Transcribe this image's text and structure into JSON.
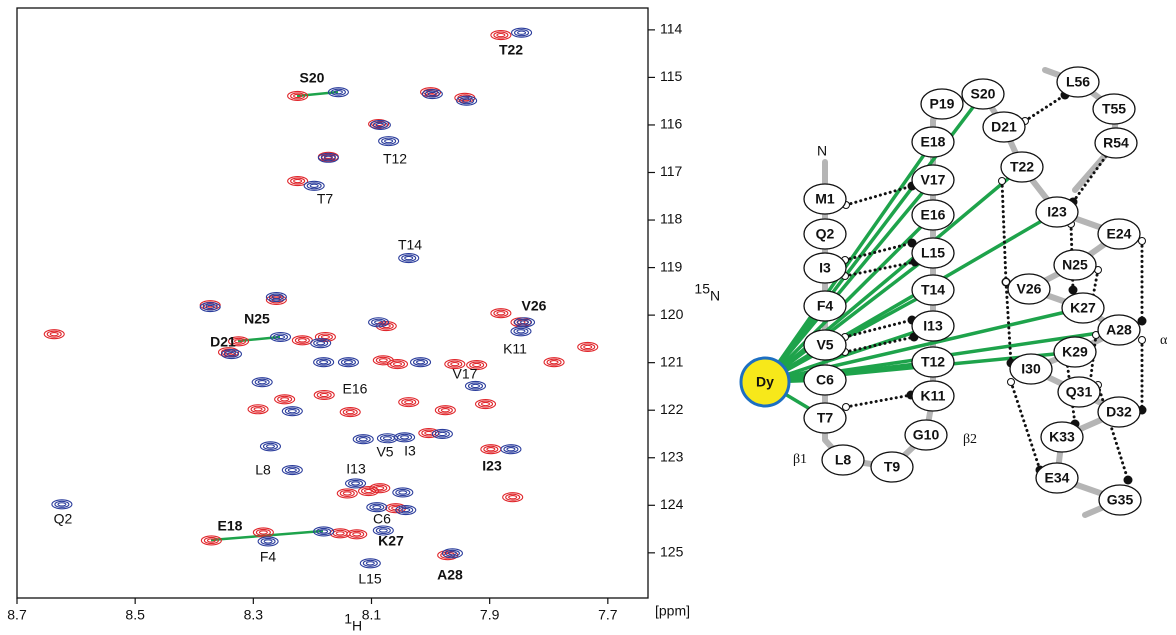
{
  "chart_data": {
    "type": "scatter",
    "xlim": [
      8.7,
      7.632
    ],
    "ylim": [
      125.95,
      113.54
    ],
    "xticks": [
      8.7,
      8.5,
      8.3,
      8.1,
      7.9,
      7.7
    ],
    "yticks": [
      114,
      115,
      116,
      117,
      118,
      119,
      120,
      121,
      122,
      123,
      124,
      125
    ],
    "x_label": {
      "sup": "1",
      "text": "H"
    },
    "y_label": {
      "sup": "15",
      "text": "N"
    },
    "unit": "[ppm]",
    "series": [
      {
        "color": "#e0262b",
        "x": [
          7.881,
          8.225,
          8.0,
          7.942,
          8.088,
          8.173,
          8.225,
          8.373,
          8.261,
          7.881,
          7.847,
          8.637,
          8.325,
          8.342,
          8.217,
          8.178,
          8.075,
          8.056,
          8.08,
          7.959,
          7.922,
          7.791,
          7.734,
          8.247,
          8.292,
          8.18,
          8.136,
          7.907,
          8.003,
          7.898,
          8.141,
          8.105,
          8.086,
          7.861,
          8.059,
          8.371,
          8.283,
          8.153,
          8.125,
          7.971,
          8.037,
          7.975
        ],
        "values": [
          114.11,
          115.39,
          115.31,
          115.43,
          115.98,
          116.67,
          117.18,
          119.79,
          119.68,
          119.96,
          120.15,
          120.4,
          120.55,
          120.78,
          120.53,
          120.46,
          120.23,
          121.03,
          120.95,
          121.03,
          121.05,
          120.99,
          120.67,
          121.77,
          121.98,
          121.68,
          122.04,
          121.87,
          122.48,
          122.82,
          123.75,
          123.7,
          123.64,
          123.83,
          124.06,
          124.74,
          124.57,
          124.59,
          124.61,
          125.05,
          121.83,
          122.0
        ]
      },
      {
        "color": "#2b3d9c",
        "x": [
          7.846,
          8.156,
          7.997,
          7.939,
          8.085,
          8.071,
          8.173,
          8.197,
          8.037,
          8.373,
          8.261,
          7.841,
          7.847,
          8.254,
          8.337,
          8.088,
          8.186,
          8.139,
          8.017,
          8.181,
          7.924,
          8.285,
          8.234,
          8.271,
          8.114,
          8.073,
          8.044,
          7.98,
          7.864,
          8.234,
          8.127,
          8.624,
          8.091,
          8.042,
          8.181,
          8.275,
          8.08,
          8.102,
          7.963,
          8.047
        ],
        "values": [
          114.06,
          115.31,
          115.35,
          115.49,
          116.0,
          116.34,
          116.69,
          117.28,
          118.8,
          119.83,
          119.62,
          120.15,
          120.34,
          120.46,
          120.82,
          120.15,
          120.59,
          120.99,
          120.99,
          120.99,
          121.49,
          121.41,
          122.02,
          122.76,
          122.61,
          122.59,
          122.57,
          122.5,
          122.82,
          123.26,
          123.54,
          123.98,
          124.04,
          124.1,
          124.55,
          124.76,
          124.53,
          125.22,
          125.01,
          123.73
        ]
      }
    ],
    "annotations": [
      {
        "text": "T22",
        "color": "#1ea34b"
      },
      {
        "text": "S20",
        "color": "#1ea34b"
      },
      {
        "text": "T12",
        "color": "#111111"
      },
      {
        "text": "T7",
        "color": "#111111"
      },
      {
        "text": "T14",
        "color": "#111111"
      },
      {
        "text": "N25",
        "color": "#1ea34b"
      },
      {
        "text": "D21",
        "color": "#1ea34b"
      },
      {
        "text": "V26",
        "color": "#1ea34b"
      },
      {
        "text": "K11",
        "color": "#111111"
      },
      {
        "text": "E16",
        "color": "#111111"
      },
      {
        "text": "V17",
        "color": "#111111"
      },
      {
        "text": "V5",
        "color": "#111111"
      },
      {
        "text": "I3",
        "color": "#111111"
      },
      {
        "text": "I23",
        "color": "#1ea34b"
      },
      {
        "text": "L8",
        "color": "#111111"
      },
      {
        "text": "I13",
        "color": "#111111"
      },
      {
        "text": "Q2",
        "color": "#111111"
      },
      {
        "text": "C6",
        "color": "#111111"
      },
      {
        "text": "E18",
        "color": "#1ea34b"
      },
      {
        "text": "F4",
        "color": "#111111"
      },
      {
        "text": "K27",
        "color": "#1ea34b"
      },
      {
        "text": "L15",
        "color": "#111111"
      },
      {
        "text": "A28",
        "color": "#1ea34b"
      }
    ]
  },
  "diagram": {
    "metal": "Dy",
    "terminus": "N",
    "strand_labels": [
      "β1",
      "β2"
    ],
    "helix_label": "α",
    "nodes": [
      "M1",
      "Q2",
      "I3",
      "F4",
      "V5",
      "C6",
      "T7",
      "L8",
      "T9",
      "G10",
      "K11",
      "T12",
      "I13",
      "T14",
      "L15",
      "E16",
      "V17",
      "E18",
      "P19",
      "S20",
      "D21",
      "T22",
      "I23",
      "E24",
      "N25",
      "V26",
      "K27",
      "A28",
      "K29",
      "I30",
      "Q31",
      "D32",
      "K33",
      "E34",
      "G35",
      "R54",
      "T55",
      "L56"
    ]
  }
}
